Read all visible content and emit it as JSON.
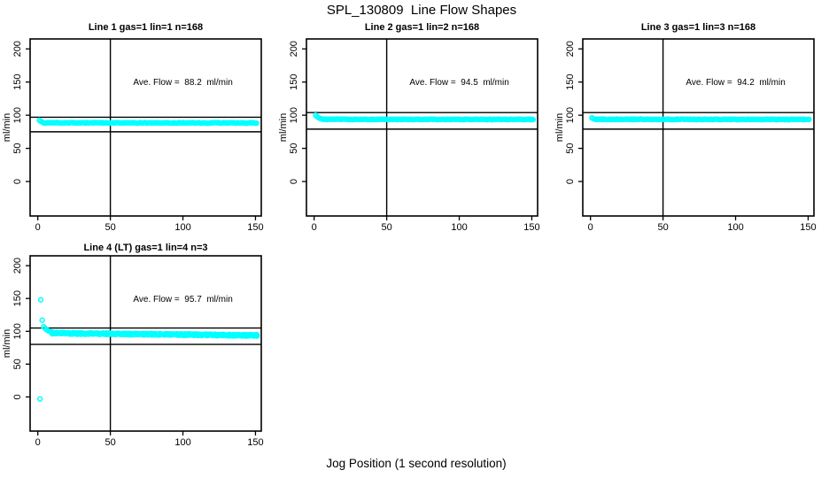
{
  "page": {
    "title": "SPL_130809  Line Flow Shapes",
    "xlabel": "Jog Position (1 second resolution)",
    "background": "#ffffff",
    "point_color": "#00ffff",
    "line_color": "#000000"
  },
  "chart_data": [
    {
      "type": "scatter",
      "title": "Line 1 gas=1 lin=1 n=168",
      "annotation": "Ave. Flow =  88.2  ml/min",
      "ave_flow_ml_min": 88.2,
      "n": 168,
      "ylabel": "ml/min",
      "x_ticks": [
        0,
        50,
        100,
        150
      ],
      "y_ticks": [
        0,
        50,
        100,
        150,
        200
      ],
      "xlim": [
        -5.3,
        154
      ],
      "ylim": [
        -52,
        215
      ],
      "ref_h_lines": [
        97,
        75
      ],
      "ref_v_line": 50,
      "annotation_at": [
        100,
        150
      ],
      "head_points": [
        [
          1,
          92.5
        ],
        [
          2,
          91
        ],
        [
          3,
          89.8
        ]
      ],
      "outlier_points": [],
      "band": {
        "x_from": 4,
        "x_to": 151,
        "step": 0.9,
        "y_start": 88.6,
        "y_end": 88.4,
        "jitter": 0.5,
        "layers": 1
      }
    },
    {
      "type": "scatter",
      "title": "Line 2 gas=1 lin=2 n=168",
      "annotation": "Ave. Flow =  94.5  ml/min",
      "ave_flow_ml_min": 94.5,
      "n": 168,
      "ylabel": "ml/min",
      "x_ticks": [
        0,
        50,
        100,
        150
      ],
      "y_ticks": [
        0,
        50,
        100,
        150,
        200
      ],
      "xlim": [
        -5.3,
        154
      ],
      "ylim": [
        -52,
        215
      ],
      "ref_h_lines": [
        104,
        79
      ],
      "ref_v_line": 50,
      "annotation_at": [
        100,
        150
      ],
      "head_points": [
        [
          1,
          100
        ],
        [
          2,
          98
        ],
        [
          3,
          96.3
        ],
        [
          4,
          95.2
        ],
        [
          5,
          94.5
        ]
      ],
      "outlier_points": [],
      "band": {
        "x_from": 6,
        "x_to": 151,
        "step": 0.9,
        "y_start": 93.8,
        "y_end": 93.6,
        "jitter": 0.5,
        "layers": 1
      }
    },
    {
      "type": "scatter",
      "title": "Line 3 gas=1 lin=3 n=168",
      "annotation": "Ave. Flow =  94.2  ml/min",
      "ave_flow_ml_min": 94.2,
      "n": 168,
      "ylabel": "ml/min",
      "x_ticks": [
        0,
        50,
        100,
        150
      ],
      "y_ticks": [
        0,
        50,
        100,
        150,
        200
      ],
      "xlim": [
        -5.3,
        154
      ],
      "ylim": [
        -52,
        215
      ],
      "ref_h_lines": [
        104,
        79
      ],
      "ref_v_line": 50,
      "annotation_at": [
        100,
        150
      ],
      "head_points": [
        [
          1,
          96
        ],
        [
          2,
          94.8
        ]
      ],
      "outlier_points": [],
      "band": {
        "x_from": 3,
        "x_to": 151,
        "step": 0.9,
        "y_start": 93.9,
        "y_end": 93.6,
        "jitter": 0.5,
        "layers": 1
      }
    },
    {
      "type": "scatter",
      "title": "Line 4 (LT) gas=1 lin=4 n=3",
      "annotation": "Ave. Flow =  95.7  ml/min",
      "ave_flow_ml_min": 95.7,
      "n": 3,
      "ylabel": "ml/min",
      "x_ticks": [
        0,
        50,
        100,
        150
      ],
      "y_ticks": [
        0,
        50,
        100,
        150,
        200
      ],
      "xlim": [
        -5.3,
        154
      ],
      "ylim": [
        -52,
        215
      ],
      "ref_h_lines": [
        105,
        80
      ],
      "ref_v_line": 50,
      "annotation_at": [
        100,
        150
      ],
      "head_points": [
        [
          4,
          107
        ],
        [
          5,
          104.5
        ],
        [
          6,
          102.5
        ],
        [
          7,
          101
        ],
        [
          8,
          100
        ],
        [
          9,
          99.3
        ],
        [
          10,
          98.8
        ]
      ],
      "outlier_points": [
        [
          1.5,
          -3
        ],
        [
          2,
          148
        ],
        [
          3,
          117
        ]
      ],
      "band": {
        "x_from": 10,
        "x_to": 151,
        "step": 1,
        "y_start": 97.2,
        "y_end": 93.8,
        "jitter": 1.2,
        "layers": 3
      }
    }
  ]
}
